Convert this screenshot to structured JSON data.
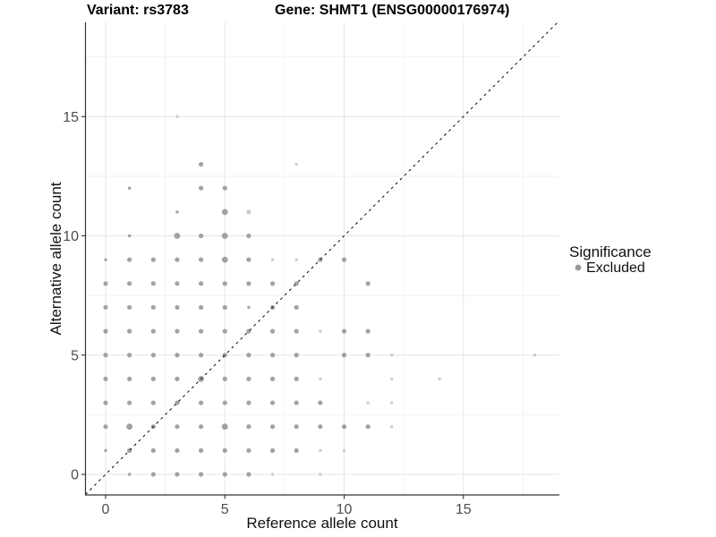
{
  "title": {
    "left": "Variant: rs3783",
    "right": "Gene: SHMT1 (ENSG00000176974)"
  },
  "legend": {
    "title": "Significance",
    "items": [
      {
        "label": "Excluded",
        "color": "#9a9a9a"
      }
    ]
  },
  "colors": {
    "point_gray": "#9a9a9a",
    "point_light_gray": "#c8c8c8",
    "grid_major": "#e5e5e5",
    "grid_minor": "#f2f2f2",
    "axis_line": "#333333",
    "reference_line": "#1a1a1a",
    "tick_label": "#4d4d4d"
  },
  "chart_data": {
    "type": "scatter",
    "title": "Variant: rs3783   Gene: SHMT1 (ENSG00000176974)",
    "xlabel": "Reference allele count",
    "ylabel": "Alternative allele count",
    "xlim": [
      -0.85,
      19.0
    ],
    "ylim": [
      -0.86,
      18.9
    ],
    "x_ticks": [
      0,
      5,
      10,
      15
    ],
    "y_ticks": [
      0,
      5,
      10,
      15
    ],
    "x_tick_labels": [
      "0",
      "5",
      "10",
      "15"
    ],
    "y_tick_labels": [
      "0",
      "5",
      "10",
      "15"
    ],
    "x_minor_ticks": [
      2.5,
      7.5,
      12.5,
      17.5
    ],
    "y_minor_ticks": [
      2.5,
      7.5,
      12.5,
      17.5
    ],
    "grid": true,
    "legend_position": "right",
    "reference_line": {
      "type": "identity",
      "slope": 1,
      "intercept": 0,
      "style": "dashed"
    },
    "point_format": "[x, y, size_class(1=small,2=medium,3=large), shade(1=gray,2=light)]",
    "series": [
      {
        "name": "Excluded",
        "color": "#9a9a9a",
        "light_color": "#c8c8c8",
        "points": [
          [
            1,
            0,
            1,
            1
          ],
          [
            2,
            0,
            2,
            1
          ],
          [
            3,
            0,
            2,
            1
          ],
          [
            4,
            0,
            2,
            1
          ],
          [
            5,
            0,
            2,
            1
          ],
          [
            6,
            0,
            2,
            1
          ],
          [
            7,
            0,
            1,
            2
          ],
          [
            9,
            0,
            1,
            2
          ],
          [
            0,
            1,
            1,
            1
          ],
          [
            1,
            1,
            2,
            1
          ],
          [
            2,
            1,
            2,
            1
          ],
          [
            3,
            1,
            2,
            1
          ],
          [
            4,
            1,
            2,
            1
          ],
          [
            5,
            1,
            2,
            1
          ],
          [
            6,
            1,
            2,
            1
          ],
          [
            7,
            1,
            2,
            1
          ],
          [
            8,
            1,
            2,
            1
          ],
          [
            9,
            1,
            1,
            2
          ],
          [
            10,
            1,
            1,
            2
          ],
          [
            0,
            2,
            2,
            1
          ],
          [
            1,
            2,
            3,
            1
          ],
          [
            2,
            2,
            2,
            1
          ],
          [
            3,
            2,
            2,
            1
          ],
          [
            4,
            2,
            2,
            1
          ],
          [
            5,
            2,
            3,
            1
          ],
          [
            6,
            2,
            2,
            1
          ],
          [
            7,
            2,
            2,
            1
          ],
          [
            8,
            2,
            2,
            1
          ],
          [
            9,
            2,
            2,
            1
          ],
          [
            10,
            2,
            2,
            1
          ],
          [
            11,
            2,
            2,
            1
          ],
          [
            12,
            2,
            1,
            2
          ],
          [
            0,
            3,
            2,
            1
          ],
          [
            1,
            3,
            2,
            1
          ],
          [
            2,
            3,
            2,
            1
          ],
          [
            3,
            3,
            2,
            1
          ],
          [
            4,
            3,
            2,
            1
          ],
          [
            5,
            3,
            2,
            1
          ],
          [
            6,
            3,
            2,
            1
          ],
          [
            7,
            3,
            2,
            1
          ],
          [
            8,
            3,
            2,
            1
          ],
          [
            9,
            3,
            2,
            1
          ],
          [
            11,
            3,
            1,
            2
          ],
          [
            12,
            3,
            1,
            2
          ],
          [
            0,
            4,
            2,
            1
          ],
          [
            1,
            4,
            2,
            1
          ],
          [
            2,
            4,
            2,
            1
          ],
          [
            3,
            4,
            2,
            1
          ],
          [
            4,
            4,
            3,
            1
          ],
          [
            5,
            4,
            2,
            1
          ],
          [
            6,
            4,
            2,
            1
          ],
          [
            7,
            4,
            2,
            1
          ],
          [
            8,
            4,
            2,
            1
          ],
          [
            9,
            4,
            1,
            2
          ],
          [
            12,
            4,
            1,
            2
          ],
          [
            14,
            4,
            1,
            2
          ],
          [
            0,
            5,
            2,
            1
          ],
          [
            1,
            5,
            2,
            1
          ],
          [
            2,
            5,
            2,
            1
          ],
          [
            3,
            5,
            2,
            1
          ],
          [
            4,
            5,
            2,
            1
          ],
          [
            5,
            5,
            2,
            1
          ],
          [
            6,
            5,
            2,
            1
          ],
          [
            7,
            5,
            2,
            1
          ],
          [
            8,
            5,
            2,
            1
          ],
          [
            10,
            5,
            2,
            1
          ],
          [
            11,
            5,
            2,
            1
          ],
          [
            12,
            5,
            1,
            2
          ],
          [
            18,
            5,
            1,
            2
          ],
          [
            0,
            6,
            2,
            1
          ],
          [
            1,
            6,
            2,
            1
          ],
          [
            2,
            6,
            2,
            1
          ],
          [
            3,
            6,
            2,
            1
          ],
          [
            4,
            6,
            2,
            1
          ],
          [
            5,
            6,
            2,
            1
          ],
          [
            6,
            6,
            2,
            1
          ],
          [
            7,
            6,
            2,
            1
          ],
          [
            8,
            6,
            2,
            1
          ],
          [
            9,
            6,
            1,
            2
          ],
          [
            10,
            6,
            2,
            1
          ],
          [
            11,
            6,
            2,
            1
          ],
          [
            0,
            7,
            2,
            1
          ],
          [
            1,
            7,
            2,
            1
          ],
          [
            2,
            7,
            2,
            1
          ],
          [
            3,
            7,
            2,
            1
          ],
          [
            4,
            7,
            2,
            1
          ],
          [
            5,
            7,
            2,
            1
          ],
          [
            6,
            7,
            1,
            1
          ],
          [
            7,
            7,
            2,
            1
          ],
          [
            8,
            7,
            2,
            1
          ],
          [
            0,
            8,
            2,
            1
          ],
          [
            1,
            8,
            2,
            1
          ],
          [
            2,
            8,
            2,
            1
          ],
          [
            3,
            8,
            2,
            1
          ],
          [
            4,
            8,
            2,
            1
          ],
          [
            5,
            8,
            2,
            1
          ],
          [
            6,
            8,
            2,
            1
          ],
          [
            7,
            8,
            2,
            1
          ],
          [
            8,
            8,
            2,
            1
          ],
          [
            11,
            8,
            2,
            1
          ],
          [
            0,
            9,
            1,
            1
          ],
          [
            1,
            9,
            2,
            1
          ],
          [
            2,
            9,
            2,
            1
          ],
          [
            3,
            9,
            2,
            1
          ],
          [
            4,
            9,
            2,
            1
          ],
          [
            5,
            9,
            3,
            1
          ],
          [
            6,
            9,
            2,
            1
          ],
          [
            7,
            9,
            1,
            2
          ],
          [
            8,
            9,
            1,
            2
          ],
          [
            9,
            9,
            2,
            1
          ],
          [
            10,
            9,
            2,
            1
          ],
          [
            1,
            10,
            1,
            1
          ],
          [
            3,
            10,
            3,
            1
          ],
          [
            4,
            10,
            2,
            1
          ],
          [
            5,
            10,
            3,
            1
          ],
          [
            6,
            10,
            2,
            1
          ],
          [
            3,
            11,
            1,
            1
          ],
          [
            5,
            11,
            3,
            1
          ],
          [
            6,
            11,
            2,
            2
          ],
          [
            1,
            12,
            1,
            1
          ],
          [
            4,
            12,
            2,
            1
          ],
          [
            5,
            12,
            2,
            1
          ],
          [
            4,
            13,
            2,
            1
          ],
          [
            8,
            13,
            1,
            2
          ],
          [
            3,
            15,
            1,
            2
          ]
        ]
      }
    ]
  }
}
